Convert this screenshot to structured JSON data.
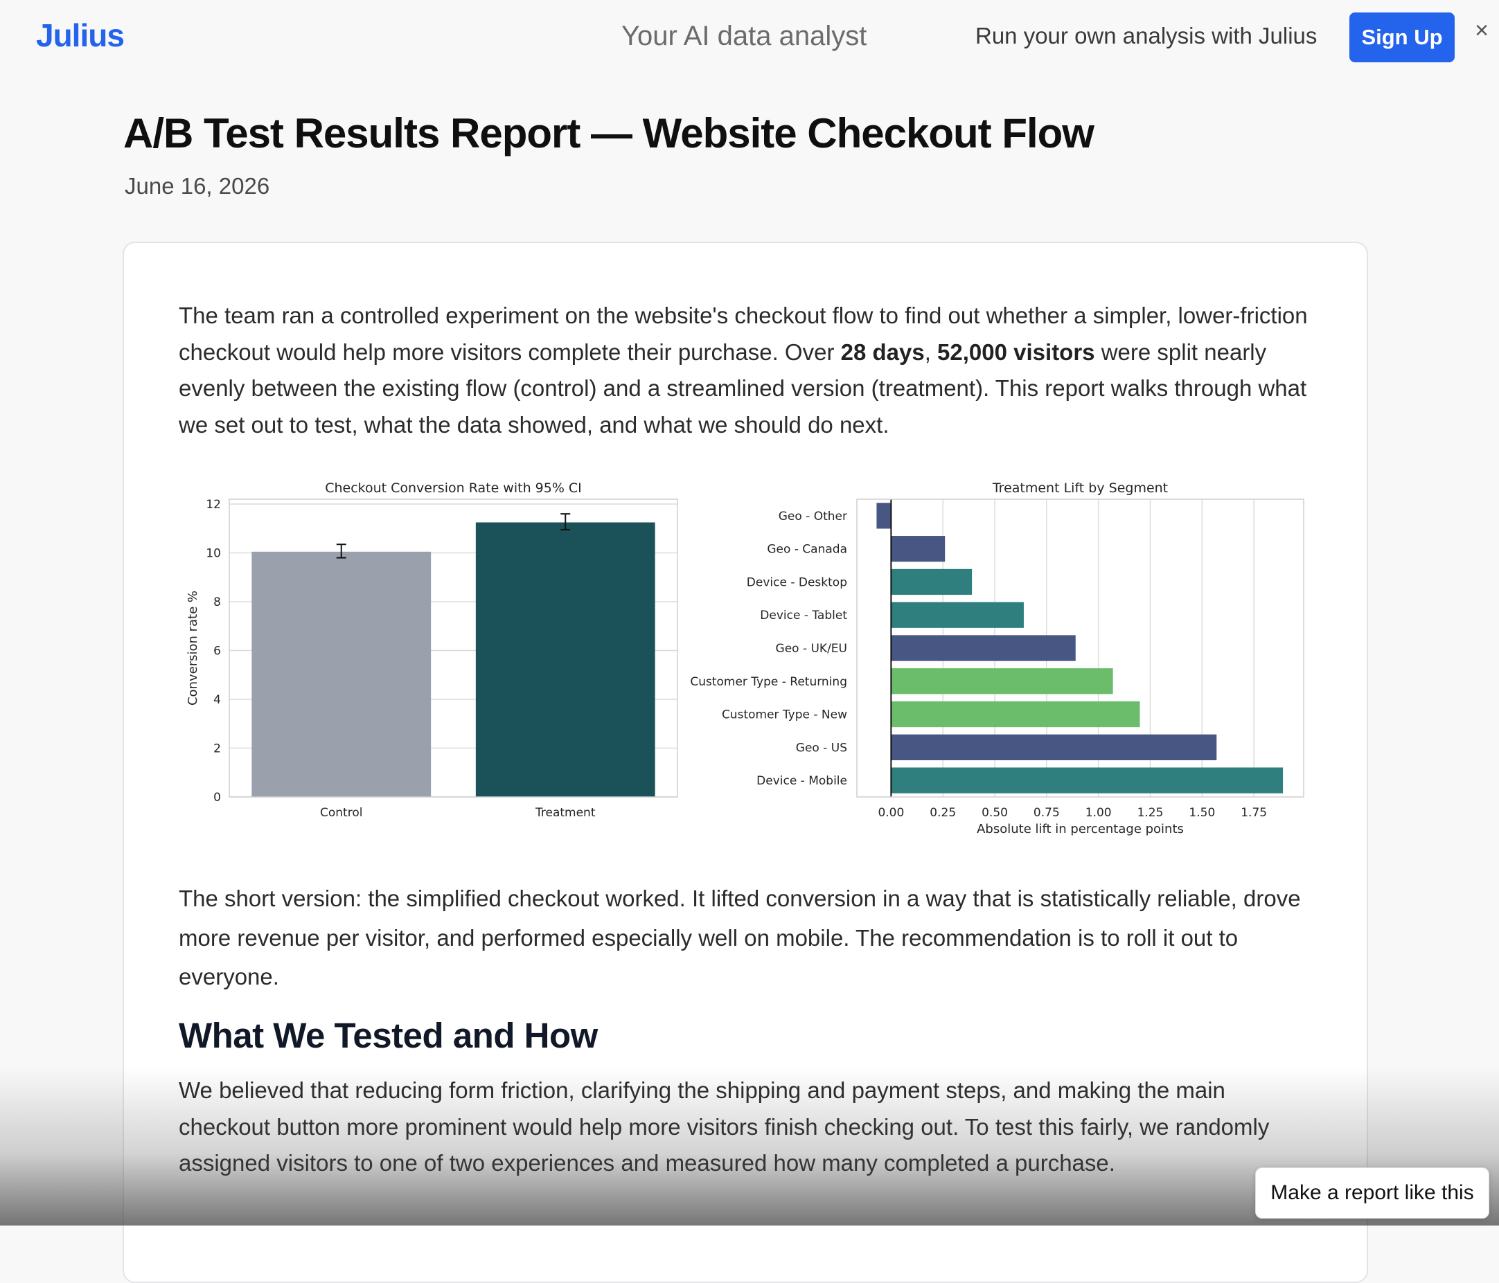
{
  "header": {
    "logo": "Julius",
    "tagline": "Your AI data analyst",
    "promo": "Run your own analysis with Julius",
    "signup_label": "Sign Up",
    "close_icon": "×"
  },
  "report": {
    "title": "A/B Test Results Report — Website Checkout Flow",
    "date": "June 16, 2026"
  },
  "body": {
    "intro_part1": "The team ran a controlled experiment on the website's checkout flow to find out whether a simpler, lower-friction checkout would help more visitors complete their purchase. Over ",
    "intro_bold1": "28 days",
    "intro_comma": ", ",
    "intro_bold2": "52,000 visitors",
    "intro_part2": " were split nearly evenly between the existing flow (control) and a streamlined version (treatment). This report walks through what we set out to test, what the data showed, and what we should do next.",
    "summary": "The short version: the simplified checkout worked. It lifted conversion in a way that is statistically reliable, drove more revenue per visitor, and performed especially well on mobile. The recommendation is to roll it out to everyone.",
    "section_heading": "What We Tested and How",
    "section_text": "We believed that reducing form friction, clarifying the shipping and payment steps, and making the main checkout button more prominent would help more visitors finish checking out. To test this fairly, we randomly assigned visitors to one of two experiences and measured how many completed a purchase."
  },
  "cta": {
    "label": "Make a report like this"
  },
  "chart_data": [
    {
      "type": "bar",
      "title": "Checkout Conversion Rate with 95% CI",
      "xlabel": "",
      "ylabel": "Conversion rate %",
      "categories": [
        "Control",
        "Treatment"
      ],
      "values": [
        10.05,
        11.25
      ],
      "error": [
        [
          9.8,
          10.35
        ],
        [
          10.95,
          11.6
        ]
      ],
      "colors": [
        "#9aa1ac",
        "#1b525a"
      ],
      "ylim": [
        0,
        12.2
      ],
      "yticks": [
        "0",
        "2",
        "4",
        "6",
        "8",
        "10",
        "12"
      ],
      "grid": true
    },
    {
      "type": "bar",
      "orientation": "horizontal",
      "title": "Treatment Lift by Segment",
      "xlabel": "Absolute lift in percentage points",
      "ylabel": "",
      "categories": [
        "Geo - Other",
        "Geo - Canada",
        "Device - Desktop",
        "Device - Tablet",
        "Geo - UK/EU",
        "Customer Type - Returning",
        "Customer Type - New",
        "Geo - US",
        "Device - Mobile"
      ],
      "values": [
        -0.07,
        0.26,
        0.39,
        0.64,
        0.89,
        1.07,
        1.2,
        1.57,
        1.89
      ],
      "colors": [
        "#475683",
        "#475683",
        "#2e7f7d",
        "#2e7f7d",
        "#475683",
        "#6bbd6b",
        "#6bbd6b",
        "#475683",
        "#2e7f7d"
      ],
      "xlim": [
        -0.165,
        1.99
      ],
      "xticks": [
        "0.00",
        "0.25",
        "0.50",
        "0.75",
        "1.00",
        "1.25",
        "1.50",
        "1.75"
      ],
      "grid": true
    }
  ]
}
